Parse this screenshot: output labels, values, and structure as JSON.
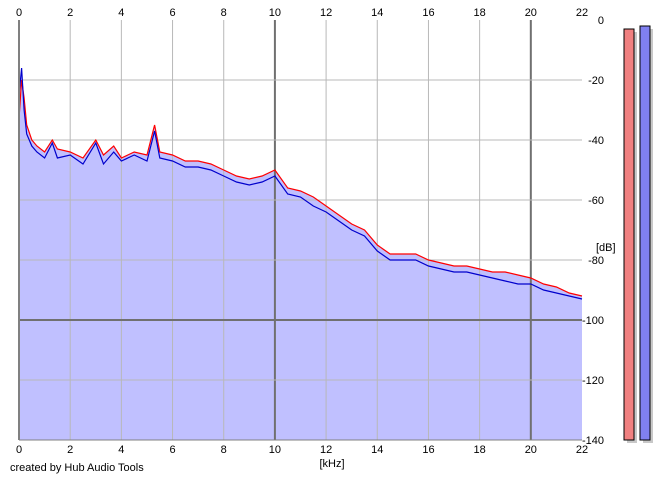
{
  "colors": {
    "background": "#ffffff",
    "plot_background": "#ffffff",
    "area_fill": "#c0c0ff",
    "grid_minor": "#b8b8b8",
    "grid_major": "#707070",
    "channel_left": "#ff0000",
    "channel_right": "#0000cc",
    "meter_left": "#f08080",
    "meter_right": "#8080f0",
    "meter_shadow": "#c8c8c8"
  },
  "credit": "created by Hub Audio Tools",
  "chart_data": {
    "type": "line",
    "xlabel": "[kHz]",
    "ylabel": "[dB]",
    "xlim": [
      0,
      22
    ],
    "ylim": [
      -140,
      0
    ],
    "x_ticks": [
      "0",
      "2",
      "4",
      "6",
      "8",
      "10",
      "12",
      "14",
      "16",
      "18",
      "20",
      "22"
    ],
    "y_ticks": [
      "0",
      "-20",
      "-40",
      "-60",
      "-80",
      "-100",
      "-120",
      "-140"
    ],
    "grid": true,
    "legend": "none",
    "area_under_spectrum": true,
    "series": [
      {
        "color": "#ff0000",
        "x": [
          0,
          0.1,
          0.2,
          0.3,
          0.5,
          0.7,
          1.0,
          1.3,
          1.5,
          2.0,
          2.5,
          3.0,
          3.3,
          3.7,
          4.0,
          4.5,
          5.0,
          5.3,
          5.5,
          6.0,
          6.5,
          7.0,
          7.5,
          8.0,
          8.5,
          9.0,
          9.5,
          10.0,
          10.5,
          11.0,
          11.5,
          12.0,
          12.5,
          13.0,
          13.5,
          14.0,
          14.5,
          15.0,
          15.5,
          16.0,
          16.5,
          17.0,
          17.5,
          18.0,
          18.5,
          19.0,
          19.5,
          20.0,
          20.5,
          21.0,
          21.5,
          22.0
        ],
        "y": [
          -33,
          -20,
          -26,
          -35,
          -40,
          -42,
          -44,
          -40,
          -43,
          -44,
          -46,
          -40,
          -45,
          -42,
          -46,
          -44,
          -45,
          -35,
          -44,
          -45,
          -47,
          -47,
          -48,
          -50,
          -52,
          -53,
          -52,
          -50,
          -56,
          -57,
          -59,
          -62,
          -65,
          -68,
          -70,
          -75,
          -78,
          -78,
          -78,
          -80,
          -81,
          -82,
          -82,
          -83,
          -84,
          -84,
          -85,
          -86,
          -88,
          -89,
          -91,
          -92
        ]
      },
      {
        "color": "#0000cc",
        "x": [
          0,
          0.1,
          0.2,
          0.3,
          0.5,
          0.7,
          1.0,
          1.3,
          1.5,
          2.0,
          2.5,
          3.0,
          3.3,
          3.7,
          4.0,
          4.5,
          5.0,
          5.3,
          5.5,
          6.0,
          6.5,
          7.0,
          7.5,
          8.0,
          8.5,
          9.0,
          9.5,
          10.0,
          10.5,
          11.0,
          11.5,
          12.0,
          12.5,
          13.0,
          13.5,
          14.0,
          14.5,
          15.0,
          15.5,
          16.0,
          16.5,
          17.0,
          17.5,
          18.0,
          18.5,
          19.0,
          19.5,
          20.0,
          20.5,
          21.0,
          21.5,
          22.0
        ],
        "y": [
          -25,
          -16,
          -30,
          -38,
          -42,
          -44,
          -46,
          -41,
          -46,
          -45,
          -48,
          -41,
          -48,
          -44,
          -47,
          -45,
          -47,
          -37,
          -46,
          -47,
          -49,
          -49,
          -50,
          -52,
          -54,
          -55,
          -54,
          -52,
          -58,
          -59,
          -62,
          -64,
          -67,
          -70,
          -72,
          -77,
          -80,
          -80,
          -80,
          -82,
          -83,
          -84,
          -84,
          -85,
          -86,
          -87,
          -88,
          -88,
          -90,
          -91,
          -92,
          -93
        ]
      }
    ],
    "level_meters": [
      {
        "color": "#f08080",
        "value_db": -3
      },
      {
        "color": "#8080f0",
        "value_db": -2
      }
    ]
  }
}
